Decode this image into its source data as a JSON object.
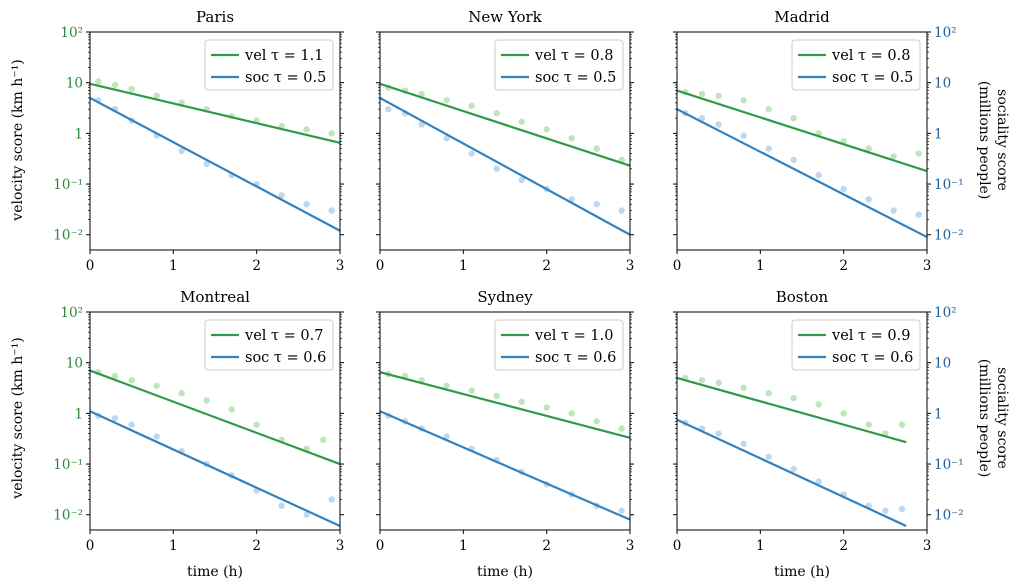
{
  "figure": {
    "y_left_label": "velocity score (km h⁻¹)",
    "y_right_label_line1": "sociality score",
    "y_right_label_line2": "(millions people)",
    "x_label": "time (h)",
    "x_ticks": [
      "0",
      "1",
      "2",
      "3"
    ],
    "y_ticks_left": [
      "10²",
      "10",
      "1",
      "10⁻¹",
      "10⁻²"
    ],
    "y_ticks_right": [
      "10²",
      "10",
      "1",
      "10⁻¹",
      "10⁻²"
    ],
    "colors": {
      "vel_line": "#2e9a48",
      "vel_points": "#b5e0b0",
      "soc_line": "#3282c0",
      "soc_points": "#b3d2ec",
      "left_tick_text": "#2a8a3a",
      "right_tick_text": "#1f5f99"
    }
  },
  "chart_data": [
    {
      "type": "scatter",
      "title": "Paris",
      "xlabel": "",
      "ylabel": "velocity score (km h⁻¹)",
      "y_scale": "log",
      "xlim": [
        0,
        3
      ],
      "ylim": [
        0.005,
        100
      ],
      "series": [
        {
          "name": "vel",
          "tau_label": "vel τ = 1.1",
          "fit_start": 9.5,
          "fit_end": 0.65,
          "points": [
            [
              0.1,
              10.5
            ],
            [
              0.3,
              9.0
            ],
            [
              0.5,
              7.5
            ],
            [
              0.8,
              5.5
            ],
            [
              1.1,
              4.0
            ],
            [
              1.4,
              3.0
            ],
            [
              1.7,
              2.2
            ],
            [
              2.0,
              1.8
            ],
            [
              2.3,
              1.4
            ],
            [
              2.6,
              1.2
            ],
            [
              2.9,
              1.0
            ]
          ]
        },
        {
          "name": "soc",
          "tau_label": "soc τ = 0.5",
          "fit_start": 5.0,
          "fit_end": 0.012,
          "points": [
            [
              0.1,
              4.5
            ],
            [
              0.3,
              3.0
            ],
            [
              0.5,
              1.8
            ],
            [
              0.8,
              0.9
            ],
            [
              1.1,
              0.45
            ],
            [
              1.4,
              0.25
            ],
            [
              1.7,
              0.15
            ],
            [
              2.0,
              0.1
            ],
            [
              2.3,
              0.06
            ],
            [
              2.6,
              0.04
            ],
            [
              2.9,
              0.03
            ]
          ]
        }
      ]
    },
    {
      "type": "scatter",
      "title": "New York",
      "xlabel": "",
      "ylabel": "",
      "y_scale": "log",
      "xlim": [
        0,
        3
      ],
      "ylim": [
        0.005,
        100
      ],
      "series": [
        {
          "name": "vel",
          "tau_label": "vel τ = 0.8",
          "fit_start": 9.5,
          "fit_end": 0.23,
          "points": [
            [
              0.1,
              8.0
            ],
            [
              0.3,
              7.0
            ],
            [
              0.5,
              6.0
            ],
            [
              0.8,
              4.5
            ],
            [
              1.1,
              3.5
            ],
            [
              1.4,
              2.5
            ],
            [
              1.7,
              1.7
            ],
            [
              2.0,
              1.2
            ],
            [
              2.3,
              0.8
            ],
            [
              2.6,
              0.5
            ],
            [
              2.9,
              0.3
            ]
          ]
        },
        {
          "name": "soc",
          "tau_label": "soc τ = 0.5",
          "fit_start": 5.0,
          "fit_end": 0.01,
          "points": [
            [
              0.1,
              3.0
            ],
            [
              0.3,
              2.5
            ],
            [
              0.5,
              1.5
            ],
            [
              0.8,
              0.8
            ],
            [
              1.1,
              0.4
            ],
            [
              1.4,
              0.2
            ],
            [
              1.7,
              0.12
            ],
            [
              2.0,
              0.08
            ],
            [
              2.3,
              0.05
            ],
            [
              2.6,
              0.04
            ],
            [
              2.9,
              0.03
            ]
          ]
        }
      ]
    },
    {
      "type": "scatter",
      "title": "Madrid",
      "xlabel": "",
      "ylabel": "sociality score (millions people)",
      "y_scale": "log",
      "xlim": [
        0,
        3
      ],
      "ylim": [
        0.005,
        100
      ],
      "series": [
        {
          "name": "vel",
          "tau_label": "vel τ = 0.8",
          "fit_start": 7.0,
          "fit_end": 0.18,
          "points": [
            [
              0.1,
              6.5
            ],
            [
              0.3,
              6.0
            ],
            [
              0.5,
              5.5
            ],
            [
              0.8,
              4.5
            ],
            [
              1.1,
              3.0
            ],
            [
              1.4,
              2.0
            ],
            [
              1.7,
              1.0
            ],
            [
              2.0,
              0.7
            ],
            [
              2.3,
              0.5
            ],
            [
              2.6,
              0.35
            ],
            [
              2.9,
              0.4
            ]
          ]
        },
        {
          "name": "soc",
          "tau_label": "soc τ = 0.5",
          "fit_start": 3.0,
          "fit_end": 0.009,
          "points": [
            [
              0.1,
              2.5
            ],
            [
              0.3,
              2.0
            ],
            [
              0.5,
              1.5
            ],
            [
              0.8,
              0.9
            ],
            [
              1.1,
              0.5
            ],
            [
              1.4,
              0.3
            ],
            [
              1.7,
              0.15
            ],
            [
              2.0,
              0.08
            ],
            [
              2.3,
              0.05
            ],
            [
              2.6,
              0.03
            ],
            [
              2.9,
              0.025
            ]
          ]
        }
      ]
    },
    {
      "type": "scatter",
      "title": "Montreal",
      "xlabel": "time (h)",
      "ylabel": "velocity score (km h⁻¹)",
      "y_scale": "log",
      "xlim": [
        0,
        3
      ],
      "ylim": [
        0.005,
        100
      ],
      "series": [
        {
          "name": "vel",
          "tau_label": "vel τ = 0.7",
          "fit_start": 7.0,
          "fit_end": 0.1,
          "points": [
            [
              0.1,
              6.5
            ],
            [
              0.3,
              5.5
            ],
            [
              0.5,
              4.5
            ],
            [
              0.8,
              3.5
            ],
            [
              1.1,
              2.5
            ],
            [
              1.4,
              1.8
            ],
            [
              1.7,
              1.2
            ],
            [
              2.0,
              0.6
            ],
            [
              2.3,
              0.3
            ],
            [
              2.6,
              0.2
            ],
            [
              2.8,
              0.3
            ]
          ]
        },
        {
          "name": "soc",
          "tau_label": "soc τ = 0.6",
          "fit_start": 1.1,
          "fit_end": 0.006,
          "points": [
            [
              0.1,
              0.9
            ],
            [
              0.3,
              0.8
            ],
            [
              0.5,
              0.6
            ],
            [
              0.8,
              0.35
            ],
            [
              1.1,
              0.18
            ],
            [
              1.4,
              0.1
            ],
            [
              1.7,
              0.06
            ],
            [
              2.0,
              0.03
            ],
            [
              2.3,
              0.015
            ],
            [
              2.6,
              0.01
            ],
            [
              2.9,
              0.02
            ]
          ]
        }
      ]
    },
    {
      "type": "scatter",
      "title": "Sydney",
      "xlabel": "time (h)",
      "ylabel": "",
      "y_scale": "log",
      "xlim": [
        0,
        3
      ],
      "ylim": [
        0.005,
        100
      ],
      "series": [
        {
          "name": "vel",
          "tau_label": "vel τ = 1.0",
          "fit_start": 6.5,
          "fit_end": 0.33,
          "points": [
            [
              0.1,
              6.0
            ],
            [
              0.3,
              5.5
            ],
            [
              0.5,
              4.5
            ],
            [
              0.8,
              3.5
            ],
            [
              1.1,
              2.8
            ],
            [
              1.4,
              2.2
            ],
            [
              1.7,
              1.7
            ],
            [
              2.0,
              1.3
            ],
            [
              2.3,
              1.0
            ],
            [
              2.6,
              0.7
            ],
            [
              2.9,
              0.5
            ]
          ]
        },
        {
          "name": "soc",
          "tau_label": "soc τ = 0.6",
          "fit_start": 1.1,
          "fit_end": 0.008,
          "points": [
            [
              0.1,
              0.9
            ],
            [
              0.3,
              0.7
            ],
            [
              0.5,
              0.5
            ],
            [
              0.8,
              0.35
            ],
            [
              1.1,
              0.2
            ],
            [
              1.4,
              0.12
            ],
            [
              1.7,
              0.07
            ],
            [
              2.0,
              0.04
            ],
            [
              2.3,
              0.025
            ],
            [
              2.6,
              0.015
            ],
            [
              2.9,
              0.012
            ]
          ]
        }
      ]
    },
    {
      "type": "scatter",
      "title": "Boston",
      "xlabel": "time (h)",
      "ylabel": "sociality score (millions people)",
      "y_scale": "log",
      "xlim": [
        0,
        3
      ],
      "ylim": [
        0.005,
        100
      ],
      "series": [
        {
          "name": "vel",
          "tau_label": "vel τ = 0.9",
          "fit_start": 5.0,
          "fit_end": 0.27,
          "fit_x_end": 2.75,
          "points": [
            [
              0.1,
              5.0
            ],
            [
              0.3,
              4.5
            ],
            [
              0.5,
              4.0
            ],
            [
              0.8,
              3.2
            ],
            [
              1.1,
              2.5
            ],
            [
              1.4,
              2.0
            ],
            [
              1.7,
              1.5
            ],
            [
              2.0,
              1.0
            ],
            [
              2.3,
              0.6
            ],
            [
              2.5,
              0.4
            ],
            [
              2.7,
              0.6
            ]
          ]
        },
        {
          "name": "soc",
          "tau_label": "soc τ = 0.6",
          "fit_start": 0.75,
          "fit_end": 0.006,
          "fit_x_end": 2.75,
          "points": [
            [
              0.1,
              0.65
            ],
            [
              0.3,
              0.5
            ],
            [
              0.5,
              0.4
            ],
            [
              0.8,
              0.25
            ],
            [
              1.1,
              0.14
            ],
            [
              1.4,
              0.08
            ],
            [
              1.7,
              0.045
            ],
            [
              2.0,
              0.025
            ],
            [
              2.3,
              0.015
            ],
            [
              2.5,
              0.012
            ],
            [
              2.7,
              0.013
            ]
          ]
        }
      ]
    }
  ]
}
